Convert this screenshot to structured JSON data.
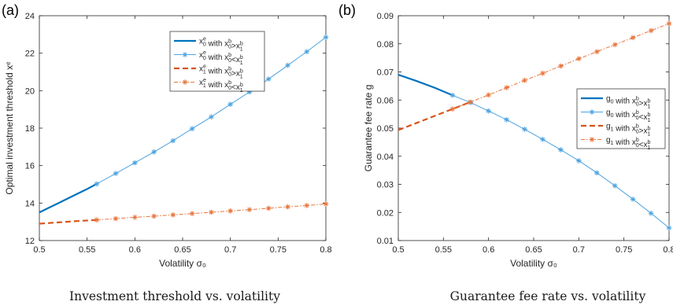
{
  "chart_data": [
    {
      "panel_label": "(a)",
      "type": "line",
      "caption": "Investment threshold vs. volatility",
      "xlabel": "Volatility σ₀",
      "ylabel": "Optimal investment threshold xᵉ",
      "xlim": [
        0.5,
        0.8
      ],
      "ylim": [
        12,
        24
      ],
      "xticks": [
        "0.5",
        "0.55",
        "0.6",
        "0.65",
        "0.7",
        "0.75",
        "0.8"
      ],
      "yticks": [
        "12",
        "14",
        "16",
        "18",
        "20",
        "22",
        "24"
      ],
      "grid": false,
      "legend_position": "top-right",
      "legend": [
        "x0e with x0b>x1b",
        "x0e with x0b<x1b",
        "x1e with x0b>x1b",
        "x1e with x0b<x1b"
      ],
      "series": [
        {
          "name": "x0e with x0b>x1b",
          "color": "#0072BD",
          "style": "solid-thick",
          "x": [
            0.5,
            0.51,
            0.52,
            0.53,
            0.54,
            0.55,
            0.56
          ],
          "y": [
            13.5,
            13.75,
            14.0,
            14.25,
            14.5,
            14.75,
            15.02
          ]
        },
        {
          "name": "x0e with x0b<x1b",
          "color": "#4DA3E0",
          "style": "solid-star",
          "x": [
            0.56,
            0.58,
            0.6,
            0.62,
            0.64,
            0.66,
            0.68,
            0.7,
            0.72,
            0.74,
            0.76,
            0.78,
            0.8
          ],
          "y": [
            15.02,
            15.58,
            16.15,
            16.73,
            17.33,
            17.97,
            18.6,
            19.27,
            19.93,
            20.62,
            21.35,
            22.08,
            22.85
          ]
        },
        {
          "name": "x1e with x0b>x1b",
          "color": "#D95319",
          "style": "dashed-thick",
          "x": [
            0.5,
            0.52,
            0.54,
            0.56
          ],
          "y": [
            12.9,
            12.97,
            13.04,
            13.1
          ]
        },
        {
          "name": "x1e with x0b<x1b",
          "color": "#E8743B",
          "style": "dashdot-star",
          "x": [
            0.56,
            0.58,
            0.6,
            0.62,
            0.64,
            0.66,
            0.68,
            0.7,
            0.72,
            0.74,
            0.76,
            0.78,
            0.8
          ],
          "y": [
            13.1,
            13.17,
            13.24,
            13.3,
            13.37,
            13.44,
            13.51,
            13.58,
            13.65,
            13.72,
            13.8,
            13.87,
            13.95
          ]
        }
      ]
    },
    {
      "panel_label": "(b)",
      "type": "line",
      "caption": "Guarantee fee rate vs. volatility",
      "xlabel": "Volatility σ₀",
      "ylabel": "Guarantee fee rate g",
      "xlim": [
        0.5,
        0.8
      ],
      "ylim": [
        0.01,
        0.09
      ],
      "xticks": [
        "0.5",
        "0.55",
        "0.6",
        "0.65",
        "0.7",
        "0.75",
        "0.8"
      ],
      "yticks": [
        "0.01",
        "0.02",
        "0.03",
        "0.04",
        "0.05",
        "0.06",
        "0.07",
        "0.08",
        "0.09"
      ],
      "grid": false,
      "legend_position": "middle-right",
      "legend": [
        "g0 with x0b>x1b",
        "g0 with x0b<x1b",
        "g1 with x0b>x1b",
        "g1 with x0b<x1b"
      ],
      "series": [
        {
          "name": "g0 with x0b>x1b",
          "color": "#0072BD",
          "style": "solid-thick",
          "x": [
            0.5,
            0.52,
            0.54,
            0.56
          ],
          "y": [
            0.069,
            0.0668,
            0.0644,
            0.0617
          ]
        },
        {
          "name": "g0 with x0b<x1b",
          "color": "#4DA3E0",
          "style": "solid-star",
          "x": [
            0.56,
            0.58,
            0.6,
            0.62,
            0.64,
            0.66,
            0.68,
            0.7,
            0.72,
            0.74,
            0.76,
            0.78,
            0.8
          ],
          "y": [
            0.0617,
            0.0591,
            0.0561,
            0.053,
            0.0496,
            0.046,
            0.0423,
            0.0384,
            0.0341,
            0.0295,
            0.0247,
            0.0197,
            0.0145
          ]
        },
        {
          "name": "g1 with x0b>x1b",
          "color": "#D95319",
          "style": "dashed-thick",
          "x": [
            0.5,
            0.52,
            0.54,
            0.56,
            0.58
          ],
          "y": [
            0.0493,
            0.0518,
            0.0543,
            0.0568,
            0.0593
          ]
        },
        {
          "name": "g1 with x0b<x1b",
          "color": "#E8743B",
          "style": "dashdot-star",
          "x": [
            0.56,
            0.58,
            0.6,
            0.62,
            0.64,
            0.66,
            0.68,
            0.7,
            0.72,
            0.74,
            0.76,
            0.78,
            0.8
          ],
          "y": [
            0.0568,
            0.0593,
            0.0618,
            0.0644,
            0.067,
            0.0695,
            0.0721,
            0.0747,
            0.0772,
            0.0797,
            0.0822,
            0.0847,
            0.0872
          ]
        }
      ]
    }
  ]
}
